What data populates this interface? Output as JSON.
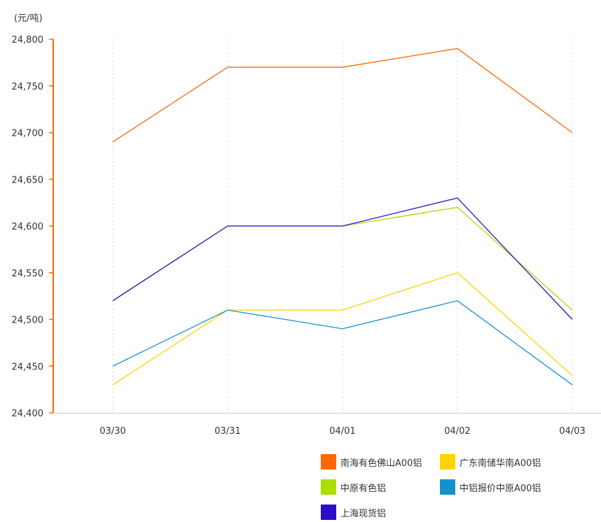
{
  "chart_data": {
    "type": "line",
    "unit_label": "(元/吨)",
    "categories": [
      "03/30",
      "03/31",
      "04/01",
      "04/02",
      "04/03"
    ],
    "ylim": [
      24400,
      24800
    ],
    "yticks": [
      24400,
      24450,
      24500,
      24550,
      24600,
      24650,
      24700,
      24750,
      24800
    ],
    "ytick_labels": [
      "24,400",
      "24,450",
      "24,500",
      "24,550",
      "24,600",
      "24,650",
      "24,700",
      "24,750",
      "24,800"
    ],
    "grid": "vertical-dashed",
    "legend_position": "bottom-right",
    "series": [
      {
        "name": "南海有色佛山A00铝",
        "color": "#FF6600",
        "values": [
          24690,
          24770,
          24770,
          24790,
          24700
        ]
      },
      {
        "name": "广东南储华南A00铝",
        "color": "#FFD200",
        "values": [
          24430,
          24510,
          24510,
          24550,
          24440
        ]
      },
      {
        "name": "中原有色铝",
        "color": "#AADD00",
        "values": [
          24520,
          24600,
          24600,
          24620,
          24510
        ]
      },
      {
        "name": "中铝报价中原A00铝",
        "color": "#1492CF",
        "values": [
          24450,
          24510,
          24490,
          24520,
          24430
        ]
      },
      {
        "name": "上海现货铝",
        "color": "#2B0FC8",
        "values": [
          24520,
          24600,
          24600,
          24630,
          24500
        ]
      }
    ]
  }
}
